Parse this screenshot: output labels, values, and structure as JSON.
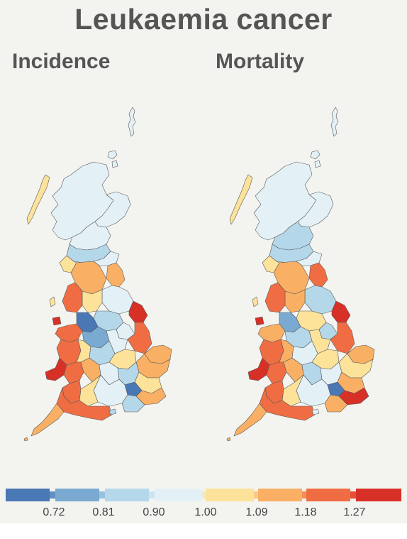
{
  "title": "Leukaemia cancer",
  "panels": [
    {
      "label": "Incidence"
    },
    {
      "label": "Mortality"
    }
  ],
  "legend": {
    "colors": [
      "#4a78b4",
      "#7aaad2",
      "#b5d7ea",
      "#e3f1f7",
      "#fde29a",
      "#f9b064",
      "#f06d43",
      "#d73027"
    ],
    "tick_labels": [
      "0.72",
      "0.81",
      "0.90",
      "1.00",
      "1.09",
      "1.18",
      "1.27"
    ]
  },
  "map_colors": {
    "scotland": "#e3f1f7",
    "isles": "#fde29a",
    "stroke": "#555555"
  }
}
